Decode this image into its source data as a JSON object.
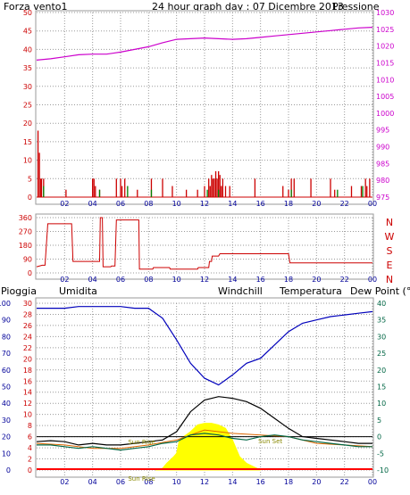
{
  "header": {
    "wind_title": "Forza vento1",
    "graph_title": "24 hour graph day : 07 Dicembre 2013",
    "pressure_title": "Pressione"
  },
  "colors": {
    "frame": "#9a9a9a",
    "wind": "#cc0000",
    "gust": "#008000",
    "pressure": "#cc00cc",
    "humidity": "#0000bb",
    "temperature": "#000000",
    "dewpoint": "#006644",
    "windchill": "#dd6600",
    "rain": "#ff0000",
    "solar": "#ffff00",
    "text_red": "#cc0000",
    "text_blue": "#000099",
    "text_orange": "#dd6600",
    "text_magenta": "#cc00cc",
    "text_green": "#006644"
  },
  "chart_data": [
    {
      "type": "line",
      "name": "wind-pressure",
      "x_ticks": [
        "02",
        "04",
        "06",
        "08",
        "10",
        "12",
        "14",
        "16",
        "18",
        "20",
        "22",
        "00"
      ],
      "y_ticks_left": [
        "0",
        "5",
        "10",
        "15",
        "20",
        "25",
        "30",
        "35",
        "40",
        "45",
        "50"
      ],
      "y_ticks_right": [
        "975",
        "980",
        "985",
        "990",
        "995",
        "1000",
        "1005",
        "1010",
        "1015",
        "1020",
        "1025",
        "1030"
      ],
      "ylim_left": [
        0,
        50
      ],
      "ylim_right": [
        975,
        1030
      ],
      "pressure": {
        "x": [
          0,
          1,
          2,
          3,
          4,
          5,
          6,
          7,
          8,
          9,
          10,
          11,
          12,
          13,
          14,
          15,
          16,
          17,
          18,
          19,
          20,
          21,
          22,
          23,
          24
        ],
        "y": [
          1015.8,
          1016.2,
          1016.8,
          1017.4,
          1017.6,
          1017.6,
          1018.2,
          1019,
          1019.8,
          1021,
          1022,
          1022.2,
          1022.4,
          1022.2,
          1022,
          1022.2,
          1022.6,
          1023,
          1023.4,
          1023.8,
          1024.2,
          1024.6,
          1025,
          1025.4,
          1025.6
        ]
      },
      "wind_bars": {
        "x": [
          0.1,
          0.2,
          0.3,
          0.35,
          0.5,
          2.1,
          4.0,
          4.1,
          4.2,
          4.5,
          5.7,
          6.0,
          6.1,
          6.3,
          7.2,
          8.2,
          9.0,
          9.7,
          10.7,
          11.5,
          12.0,
          12.3,
          12.4,
          12.5,
          12.6,
          12.7,
          12.8,
          12.9,
          13.0,
          13.1,
          13.2,
          13.3,
          13.5,
          13.8,
          15.6,
          17.6,
          18.0,
          18.2,
          18.4,
          19.6,
          21.0,
          21.3,
          22.5,
          23.2,
          23.5,
          23.6,
          23.8
        ],
        "y": [
          18,
          12,
          5,
          5,
          5,
          2,
          5,
          5,
          3,
          2,
          5,
          5,
          3,
          5,
          2,
          5,
          5,
          3,
          2,
          2,
          3,
          5,
          3,
          6,
          5,
          5,
          7,
          5,
          7,
          6,
          3,
          5,
          3,
          3,
          5,
          3,
          2,
          5,
          5,
          5,
          5,
          2,
          3,
          3,
          5,
          3,
          5
        ]
      },
      "gust_bars": {
        "x": [
          0.5,
          4.5,
          6.5,
          8.2,
          12.2,
          13.0,
          18.2,
          21.5,
          23.3
        ],
        "y": [
          3,
          2,
          3,
          2,
          2,
          2,
          2,
          2,
          3
        ]
      }
    },
    {
      "type": "line",
      "name": "wind-direction",
      "x_ticks": [
        "02",
        "04",
        "06",
        "08",
        "10",
        "12",
        "14",
        "16",
        "18",
        "20",
        "22",
        "00"
      ],
      "y_ticks_left": [
        "0",
        "90",
        "180",
        "270",
        "360"
      ],
      "direction_labels": [
        "N",
        "W",
        "S",
        "E",
        "N"
      ],
      "ylim": [
        0,
        360
      ],
      "direction": {
        "x": [
          0,
          0.4,
          0.6,
          0.8,
          1.0,
          1.1,
          2.5,
          2.6,
          4.5,
          4.55,
          4.7,
          4.75,
          5.3,
          5.35,
          5.6,
          5.7,
          6.0,
          6.05,
          7.3,
          7.35,
          8.3,
          8.35,
          9.5,
          9.55,
          11.5,
          11.55,
          12.3,
          12.35,
          12.5,
          12.55,
          13.0,
          13.1,
          18.0,
          18.1,
          24
        ],
        "y": [
          40,
          50,
          50,
          320,
          320,
          320,
          320,
          75,
          75,
          360,
          360,
          40,
          40,
          45,
          45,
          345,
          345,
          345,
          345,
          25,
          25,
          35,
          35,
          25,
          25,
          35,
          35,
          75,
          75,
          110,
          110,
          125,
          125,
          65,
          65
        ]
      }
    },
    {
      "type": "line",
      "name": "rain-humidity-temperature",
      "header_labels": {
        "rain": "Pioggia",
        "humidity": "Umidita",
        "windchill": "Windchill",
        "temperature": "Temperatura",
        "dewpoint": "Dew Point (°C"
      },
      "x_ticks": [
        "02",
        "04",
        "06",
        "08",
        "10",
        "12",
        "14",
        "16",
        "18",
        "20",
        "22",
        "00"
      ],
      "humidity_ticks": [
        "0",
        "10",
        "20",
        "30",
        "40",
        "50",
        "60",
        "70",
        "80",
        "90",
        "100"
      ],
      "rain_ticks": [
        "0",
        "2",
        "4",
        "6",
        "8",
        "10",
        "12",
        "14",
        "16",
        "18",
        "20",
        "22",
        "24",
        "26",
        "28",
        "30"
      ],
      "temp_ticks": [
        "-10",
        "-5",
        "0",
        "5",
        "10",
        "15",
        "20",
        "25",
        "30",
        "35",
        "40"
      ],
      "ylim_humidity": [
        0,
        100
      ],
      "ylim_temp": [
        -10,
        40
      ],
      "annotations": [
        "Sun Rise",
        "Sun Set",
        "Sun Rise"
      ],
      "humidity": {
        "x": [
          0,
          1,
          2,
          3,
          4,
          5,
          6,
          7,
          8,
          9,
          10,
          11,
          12,
          13,
          14,
          15,
          16,
          17,
          18,
          19,
          20,
          21,
          22,
          23,
          24
        ],
        "y": [
          97,
          97,
          97,
          98,
          98,
          98,
          98,
          97,
          97,
          91,
          78,
          64,
          55,
          51,
          57,
          64,
          67,
          75,
          83,
          88,
          90,
          92,
          93,
          94,
          95
        ]
      },
      "temperature": {
        "x": [
          0,
          1,
          2,
          3,
          4,
          5,
          6,
          7,
          8,
          9,
          10,
          11,
          12,
          13,
          14,
          15,
          16,
          17,
          18,
          19,
          20,
          21,
          22,
          23,
          24
        ],
        "y": [
          -1.5,
          -1.2,
          -1.5,
          -2.5,
          -2.0,
          -2.5,
          -2.5,
          -2.0,
          -1.5,
          -1.0,
          1.5,
          7.5,
          11.0,
          12.0,
          11.5,
          10.5,
          8.5,
          5.5,
          2.5,
          0.0,
          -0.5,
          -1.0,
          -1.5,
          -2.0,
          -2.0
        ]
      },
      "dewpoint": {
        "x": [
          0,
          1,
          2,
          3,
          4,
          5,
          6,
          7,
          8,
          9,
          10,
          11,
          12,
          13,
          14,
          15,
          16,
          17,
          18,
          19,
          20,
          21,
          22,
          23,
          24
        ],
        "y": [
          -2.5,
          -2.5,
          -3.0,
          -3.5,
          -3.0,
          -3.5,
          -4.0,
          -3.5,
          -3.0,
          -2.0,
          -1.5,
          0.5,
          1.0,
          0.5,
          -0.5,
          -1.0,
          0.0,
          0.5,
          0.0,
          -1.0,
          -1.5,
          -2.0,
          -2.5,
          -3.0,
          -3.0
        ]
      },
      "windchill": {
        "x": [
          0,
          2,
          4,
          6,
          8,
          10,
          12,
          14,
          16,
          18,
          20,
          22,
          24
        ],
        "y": [
          -2.0,
          -2.5,
          -3.5,
          -3.5,
          -2.5,
          -1.0,
          2.0,
          1.0,
          0.5,
          0.0,
          -2.0,
          -2.5,
          -3.0
        ]
      },
      "solar": {
        "x": [
          8.5,
          9.0,
          9.3,
          9.8,
          10.0,
          10.2,
          10.5,
          11.0,
          11.5,
          12.0,
          12.5,
          13.0,
          13.5,
          14.0,
          14.5,
          15.0,
          15.5,
          16.0
        ],
        "y": [
          0,
          1,
          4,
          8,
          10,
          18,
          20,
          23,
          27,
          28,
          28,
          27,
          25,
          18,
          8,
          4,
          2,
          0
        ]
      },
      "rain": {
        "x": [
          0,
          24
        ],
        "y": [
          0,
          0
        ]
      }
    }
  ]
}
